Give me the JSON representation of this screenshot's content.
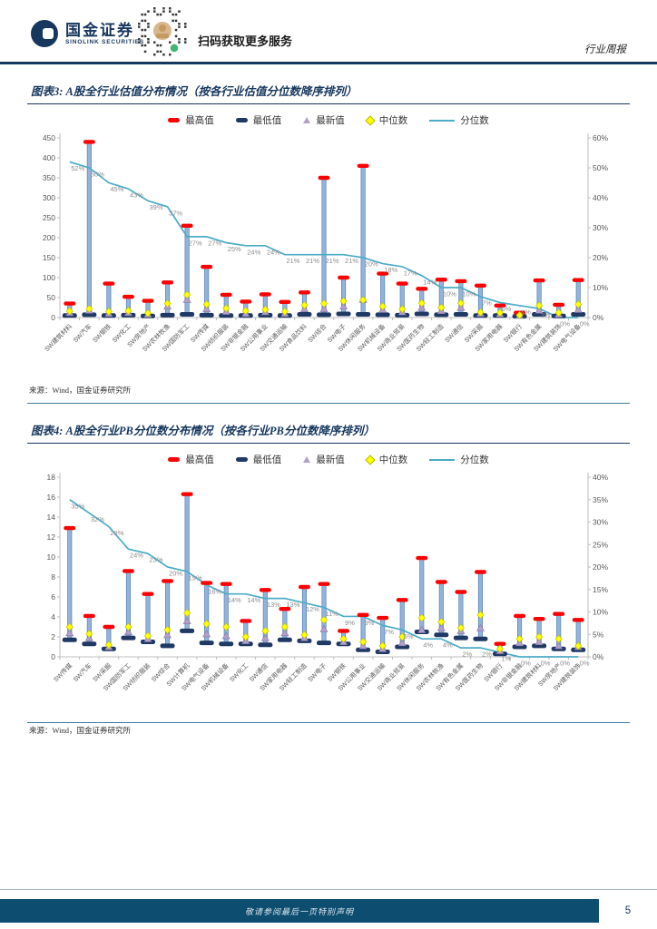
{
  "header": {
    "brand_cn": "国金证券",
    "brand_en": "SINOLINK SECURITIES",
    "qr_caption": "扫码获取更多服务",
    "report_type": "行业周报"
  },
  "legend": {
    "max": "最高值",
    "min": "最低值",
    "latest": "最新值",
    "median": "中位数",
    "percentile": "分位数"
  },
  "figures": [
    {
      "title": "图表3: A股全行业估值分布情况（按各行业估值分位数降序排列）",
      "source": "来源：Wind，国金证券研究所"
    },
    {
      "title": "图表4: A股全行业PB分位数分布情况（按各行业PB分位数降序排列）",
      "source": "来源：Wind，国金证券研究所"
    }
  ],
  "footer": {
    "disclaimer": "敬请参阅最后一页特别声明",
    "page_number": "5"
  },
  "colors": {
    "accent_navy": "#17375E",
    "stem_fill": "#95B3D7",
    "stem_stroke": "#4F81BD",
    "max_red": "#FE0000",
    "min_navy": "#1F3864",
    "median_yellow": "#FFFF00",
    "latest_purple": "#B2A1C7",
    "percentile_line": "#4BACC6",
    "label_gray": "#8C8C8C",
    "footer_bar": "#0D4D70"
  },
  "chart_data": [
    {
      "type": "bar",
      "title": "A股全行业估值分布情况（按各行业估值分位数降序排列）",
      "legend_position": "top",
      "grid": false,
      "ylim": [
        0,
        450
      ],
      "ytick": 50,
      "y2lim": [
        0,
        60
      ],
      "y2tick": 10,
      "y2suffix": "%",
      "categories": [
        "SW建筑材料",
        "SW汽车",
        "SW钢铁",
        "SW化工",
        "SW房地产",
        "SW农林牧渔",
        "SW国防军工",
        "SW传媒",
        "SW纺织服装",
        "SW非银金融",
        "SW公用事业",
        "SW交通运输",
        "SW食品饮料",
        "SW综合",
        "SW电子",
        "SW休闲服务",
        "SW机械设备",
        "SW商业贸易",
        "SW医药生物",
        "SW轻工制造",
        "SW通信",
        "SW采掘",
        "SW家用电器",
        "SW银行",
        "SW有色金属",
        "SW建筑装饰",
        "SW电气设备"
      ],
      "series": [
        {
          "key": "max",
          "name": "最高值",
          "values": [
            35,
            440,
            85,
            52,
            42,
            88,
            230,
            127,
            57,
            40,
            58,
            39,
            63,
            350,
            100,
            380,
            110,
            85,
            72,
            95,
            91,
            80,
            30,
            12,
            93,
            32,
            94
          ]
        },
        {
          "key": "min",
          "name": "最低值",
          "values": [
            5,
            7,
            5,
            6,
            4,
            6,
            8,
            6,
            5,
            5,
            6,
            5,
            8,
            7,
            9,
            8,
            7,
            6,
            9,
            7,
            8,
            5,
            5,
            3,
            8,
            4,
            8
          ]
        },
        {
          "key": "latest",
          "name": "最新值",
          "values": [
            12,
            18,
            10,
            12,
            8,
            28,
            45,
            22,
            15,
            10,
            14,
            10,
            22,
            22,
            28,
            45,
            20,
            14,
            25,
            17,
            25,
            10,
            9,
            5,
            18,
            8,
            20
          ]
        },
        {
          "key": "median",
          "name": "中位数",
          "values": [
            16,
            22,
            15,
            17,
            11,
            35,
            57,
            33,
            23,
            17,
            20,
            15,
            31,
            35,
            41,
            44,
            28,
            21,
            36,
            25,
            36,
            13,
            12,
            6,
            30,
            12,
            33
          ]
        },
        {
          "key": "pct",
          "name": "分位数",
          "axis": "right",
          "values": [
            52,
            50,
            45,
            43,
            39,
            37,
            27,
            27,
            25,
            24,
            24,
            21,
            21,
            21,
            21,
            20,
            18,
            17,
            14,
            10,
            10,
            7,
            5,
            4,
            3,
            0,
            0
          ]
        }
      ]
    },
    {
      "type": "bar",
      "title": "A股全行业PB分位数分布情况（按各行业PB分位数降序排列）",
      "legend_position": "top",
      "grid": false,
      "ylim": [
        0,
        18
      ],
      "ytick": 2,
      "y2lim": [
        0,
        40
      ],
      "y2tick": 5,
      "y2suffix": "%",
      "categories": [
        "SW传媒",
        "SW汽车",
        "SW采掘",
        "SW国防军工",
        "SW纺织服装",
        "SW综合",
        "SW计算机",
        "SW电气设备",
        "SW机械设备",
        "SW化工",
        "SW通信",
        "SW家用电器",
        "SW轻工制造",
        "SW电子",
        "SW钢铁",
        "SW公用事业",
        "SW交通运输",
        "SW商业贸易",
        "SW休闲服务",
        "SW农林牧渔",
        "SW有色金属",
        "SW医药生物",
        "SW银行",
        "SW非银金融",
        "SW建筑材料",
        "SW房地产",
        "SW建筑装饰"
      ],
      "series": [
        {
          "key": "max",
          "name": "最高值",
          "values": [
            12.9,
            4.1,
            3.0,
            8.6,
            6.3,
            7.6,
            16.3,
            7.4,
            7.3,
            3.6,
            6.7,
            4.8,
            7.0,
            7.3,
            2.6,
            4.2,
            3.9,
            5.7,
            9.9,
            7.5,
            6.5,
            8.5,
            1.3,
            4.1,
            3.8,
            4.3,
            3.7
          ]
        },
        {
          "key": "min",
          "name": "最低值",
          "values": [
            1.7,
            1.3,
            0.8,
            1.9,
            1.5,
            1.1,
            2.6,
            1.4,
            1.3,
            1.3,
            1.2,
            1.7,
            1.6,
            1.4,
            1.3,
            0.7,
            0.5,
            1.0,
            2.5,
            2.2,
            1.9,
            1.8,
            0.3,
            1.0,
            1.1,
            0.8,
            0.7
          ]
        },
        {
          "key": "latest",
          "name": "最新值",
          "values": [
            2.4,
            1.9,
            1.0,
            2.5,
            1.8,
            2.2,
            3.6,
            2.3,
            2.1,
            1.6,
            1.9,
            2.4,
            1.9,
            2.8,
            1.5,
            1.1,
            0.8,
            1.4,
            2.7,
            2.9,
            2.6,
            2.9,
            0.6,
            1.4,
            1.5,
            1.1,
            1.0
          ]
        },
        {
          "key": "median",
          "name": "中位数",
          "values": [
            3.0,
            2.3,
            1.2,
            3.0,
            2.1,
            2.7,
            4.4,
            3.3,
            3.0,
            2.0,
            2.6,
            3.0,
            2.2,
            3.7,
            1.8,
            1.5,
            1.1,
            2.0,
            3.9,
            3.5,
            2.9,
            4.2,
            0.8,
            1.8,
            2.0,
            1.8,
            1.1
          ]
        },
        {
          "key": "pct",
          "name": "分位数",
          "axis": "right",
          "values": [
            35,
            32,
            29,
            24,
            23,
            20,
            19,
            16,
            14,
            14,
            13,
            13,
            12,
            11,
            9,
            9,
            7,
            6,
            4,
            4,
            2,
            2,
            1,
            0,
            0,
            0,
            0
          ]
        }
      ]
    }
  ]
}
